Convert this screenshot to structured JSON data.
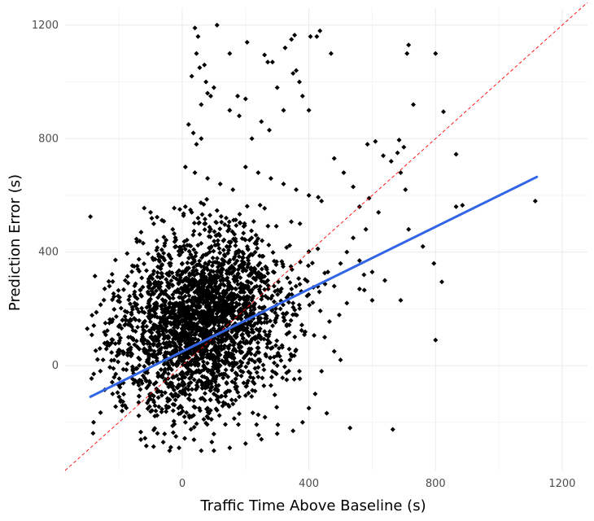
{
  "chart_data": {
    "type": "scatter",
    "title": "",
    "xlabel": "Traffic Time Above Baseline (s)",
    "ylabel": "Prediction Error (s)",
    "xlim": [
      -370,
      1280
    ],
    "ylim": [
      -370,
      1260
    ],
    "x_ticks": [
      0,
      400,
      800,
      1200
    ],
    "x_tick_labels": [
      "0",
      "400",
      "800",
      "1200"
    ],
    "y_ticks": [
      0,
      400,
      800,
      1200
    ],
    "y_tick_labels": [
      "0",
      "400",
      "800",
      "1200"
    ],
    "grid": true,
    "point_color": "#000000",
    "regression_line": {
      "color": "#3366e6",
      "x": [
        -290,
        1120
      ],
      "y": [
        -110,
        665
      ]
    },
    "identity_line": {
      "color": "#ff0000",
      "style": "dashed",
      "x": [
        -370,
        1280
      ],
      "y": [
        -370,
        1280
      ]
    },
    "points": [
      [
        -290,
        525
      ],
      [
        -200,
        80
      ],
      [
        -230,
        150
      ],
      [
        -250,
        20
      ],
      [
        -180,
        300
      ],
      [
        -150,
        220
      ],
      [
        -120,
        555
      ],
      [
        -100,
        540
      ],
      [
        -130,
        470
      ],
      [
        -90,
        500
      ],
      [
        -80,
        440
      ],
      [
        -170,
        100
      ],
      [
        -210,
        -30
      ],
      [
        -140,
        -60
      ],
      [
        -110,
        20
      ],
      [
        -60,
        380
      ],
      [
        -40,
        330
      ],
      [
        -70,
        250
      ],
      [
        -160,
        180
      ],
      [
        -50,
        150
      ],
      [
        -300,
        130
      ],
      [
        -260,
        60
      ],
      [
        -220,
        -100
      ],
      [
        -190,
        -160
      ],
      [
        -140,
        340
      ],
      [
        -230,
        280
      ],
      [
        -280,
        -200
      ],
      [
        -120,
        120
      ],
      [
        -95,
        270
      ],
      [
        -30,
        480
      ],
      [
        40,
        1190
      ],
      [
        50,
        1160
      ],
      [
        45,
        1100
      ],
      [
        55,
        1050
      ],
      [
        30,
        1020
      ],
      [
        70,
        1060
      ],
      [
        80,
        960
      ],
      [
        60,
        920
      ],
      [
        20,
        850
      ],
      [
        35,
        820
      ],
      [
        45,
        780
      ],
      [
        60,
        800
      ],
      [
        75,
        1000
      ],
      [
        90,
        950
      ],
      [
        100,
        980
      ],
      [
        110,
        1200
      ],
      [
        150,
        1100
      ],
      [
        205,
        1140
      ],
      [
        260,
        1095
      ],
      [
        270,
        1070
      ],
      [
        285,
        1070
      ],
      [
        325,
        1120
      ],
      [
        345,
        1150
      ],
      [
        355,
        1165
      ],
      [
        405,
        1160
      ],
      [
        425,
        1160
      ],
      [
        435,
        1180
      ],
      [
        470,
        1100
      ],
      [
        360,
        1040
      ],
      [
        350,
        1030
      ],
      [
        370,
        1000
      ],
      [
        380,
        950
      ],
      [
        400,
        900
      ],
      [
        300,
        980
      ],
      [
        320,
        900
      ],
      [
        180,
        880
      ],
      [
        200,
        940
      ],
      [
        250,
        860
      ],
      [
        275,
        830
      ],
      [
        220,
        800
      ],
      [
        150,
        900
      ],
      [
        175,
        950
      ],
      [
        715,
        1130
      ],
      [
        710,
        1100
      ],
      [
        800,
        1100
      ],
      [
        730,
        920
      ],
      [
        825,
        895
      ],
      [
        865,
        745
      ],
      [
        1115,
        580
      ],
      [
        885,
        565
      ],
      [
        865,
        560
      ],
      [
        685,
        795
      ],
      [
        700,
        770
      ],
      [
        680,
        750
      ],
      [
        585,
        780
      ],
      [
        610,
        790
      ],
      [
        635,
        740
      ],
      [
        660,
        720
      ],
      [
        690,
        680
      ],
      [
        705,
        620
      ],
      [
        715,
        480
      ],
      [
        760,
        420
      ],
      [
        795,
        360
      ],
      [
        820,
        295
      ],
      [
        800,
        90
      ],
      [
        690,
        230
      ],
      [
        665,
        -225
      ],
      [
        530,
        -220
      ],
      [
        465,
        155
      ],
      [
        450,
        100
      ],
      [
        480,
        50
      ],
      [
        500,
        20
      ],
      [
        440,
        -20
      ],
      [
        420,
        -100
      ],
      [
        400,
        -150
      ],
      [
        380,
        -200
      ],
      [
        350,
        -230
      ],
      [
        300,
        -240
      ],
      [
        250,
        -260
      ],
      [
        200,
        -275
      ],
      [
        150,
        -290
      ],
      [
        100,
        -300
      ],
      [
        60,
        -300
      ],
      [
        -10,
        -290
      ],
      [
        -40,
        -300
      ],
      [
        -60,
        -270
      ],
      [
        -20,
        -250
      ],
      [
        10,
        -200
      ],
      [
        30,
        -180
      ],
      [
        80,
        -150
      ],
      [
        130,
        -130
      ],
      [
        180,
        -110
      ],
      [
        230,
        -90
      ],
      [
        280,
        -70
      ],
      [
        330,
        -50
      ],
      [
        370,
        -20
      ],
      [
        560,
        560
      ],
      [
        540,
        630
      ],
      [
        590,
        590
      ],
      [
        620,
        540
      ],
      [
        510,
        680
      ],
      [
        480,
        730
      ],
      [
        520,
        400
      ],
      [
        560,
        370
      ],
      [
        600,
        330
      ],
      [
        640,
        300
      ],
      [
        560,
        270
      ],
      [
        600,
        230
      ],
      [
        520,
        220
      ],
      [
        480,
        280
      ],
      [
        460,
        330
      ],
      [
        500,
        360
      ],
      [
        540,
        450
      ],
      [
        580,
        480
      ],
      [
        10,
        700
      ],
      [
        40,
        680
      ],
      [
        80,
        660
      ],
      [
        120,
        640
      ],
      [
        160,
        620
      ],
      [
        200,
        700
      ],
      [
        240,
        680
      ],
      [
        280,
        660
      ],
      [
        320,
        640
      ],
      [
        360,
        620
      ],
      [
        400,
        600
      ],
      [
        440,
        580
      ],
      [
        10,
        560
      ],
      [
        30,
        540
      ],
      [
        50,
        520
      ],
      [
        70,
        500
      ],
      [
        90,
        480
      ],
      [
        110,
        460
      ],
      [
        130,
        440
      ],
      [
        150,
        420
      ],
      [
        170,
        400
      ],
      [
        190,
        380
      ],
      [
        210,
        360
      ],
      [
        230,
        340
      ],
      [
        250,
        320
      ],
      [
        270,
        300
      ],
      [
        290,
        280
      ],
      [
        310,
        260
      ],
      [
        330,
        240
      ],
      [
        350,
        220
      ],
      [
        -20,
        420
      ],
      [
        -10,
        390
      ],
      [
        0,
        360
      ],
      [
        10,
        330
      ],
      [
        20,
        300
      ],
      [
        30,
        270
      ],
      [
        40,
        240
      ],
      [
        50,
        210
      ],
      [
        60,
        180
      ],
      [
        70,
        150
      ],
      [
        80,
        120
      ],
      [
        90,
        90
      ],
      [
        100,
        60
      ],
      [
        110,
        30
      ],
      [
        120,
        0
      ],
      [
        130,
        -30
      ],
      [
        140,
        -60
      ],
      [
        150,
        -90
      ],
      [
        0,
        100
      ],
      [
        10,
        80
      ],
      [
        20,
        60
      ],
      [
        30,
        40
      ],
      [
        40,
        20
      ],
      [
        50,
        0
      ],
      [
        60,
        -20
      ],
      [
        70,
        -40
      ],
      [
        80,
        -60
      ],
      [
        90,
        -80
      ],
      [
        100,
        -100
      ],
      [
        110,
        -120
      ],
      [
        -30,
        250
      ],
      [
        -20,
        210
      ],
      [
        -10,
        170
      ],
      [
        0,
        130
      ],
      [
        10,
        90
      ],
      [
        20,
        50
      ],
      [
        160,
        200
      ],
      [
        170,
        170
      ],
      [
        180,
        140
      ],
      [
        190,
        110
      ],
      [
        200,
        80
      ],
      [
        210,
        50
      ],
      [
        220,
        20
      ],
      [
        230,
        -10
      ],
      [
        240,
        -40
      ],
      [
        250,
        150
      ],
      [
        260,
        120
      ],
      [
        270,
        90
      ],
      [
        280,
        60
      ],
      [
        290,
        30
      ],
      [
        300,
        0
      ],
      [
        310,
        200
      ],
      [
        320,
        170
      ],
      [
        330,
        140
      ]
    ]
  }
}
